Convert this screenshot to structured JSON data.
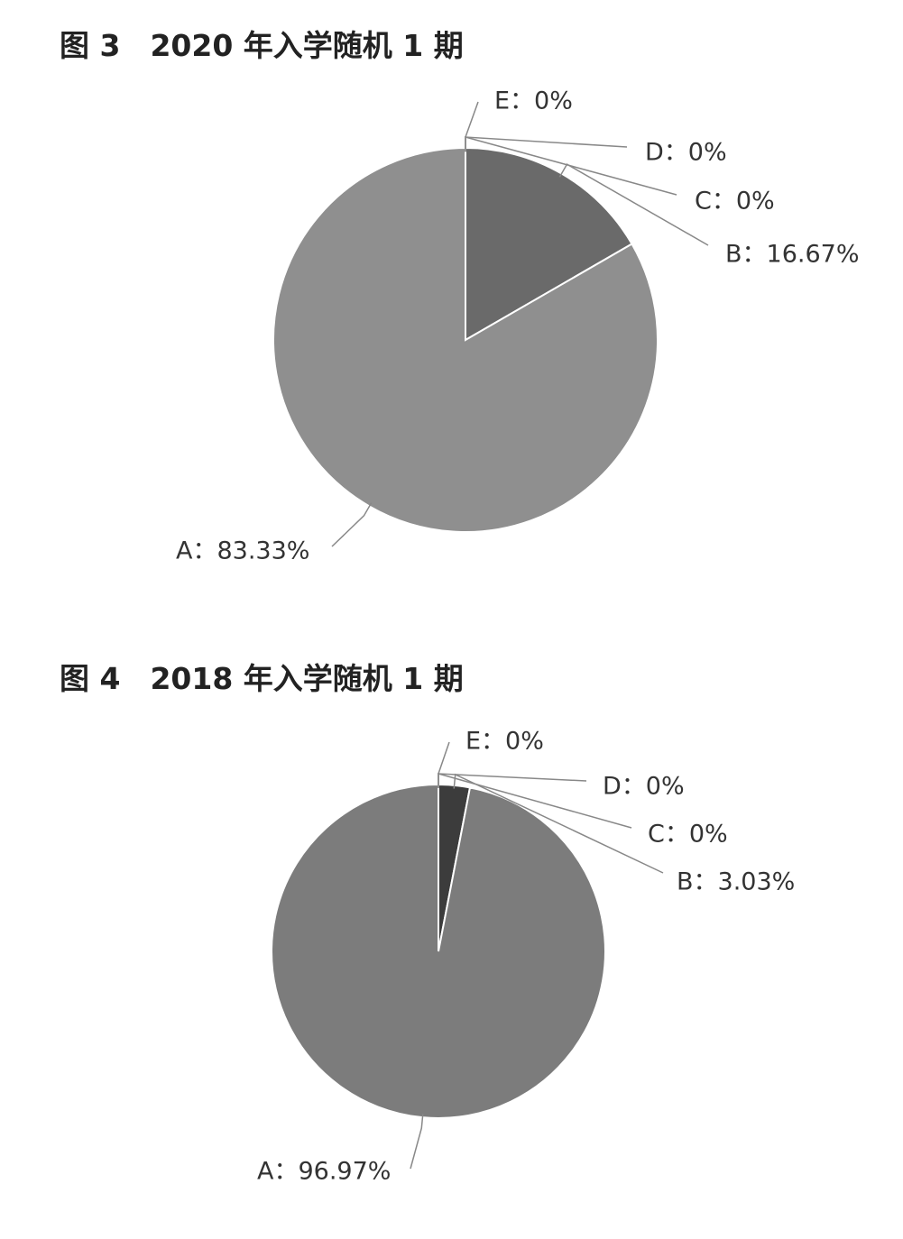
{
  "chart_data": [
    {
      "type": "pie",
      "title": "图 3　2020 年入学随机 1 期",
      "values": [
        83.33,
        16.67,
        0,
        0,
        0
      ],
      "value_labels": [
        "A：83.33%",
        "B：16.67%",
        "C：0%",
        "D：0%",
        "E：0%"
      ],
      "colors": [
        "#8f8f8f",
        "#6a6a6a",
        "#a0a0a0",
        "#a0a0a0",
        "#a0a0a0"
      ]
    },
    {
      "type": "pie",
      "title": "图 4　2018 年入学随机 1 期",
      "values": [
        96.97,
        3.03,
        0,
        0,
        0
      ],
      "value_labels": [
        "A：96.97%",
        "B：3.03%",
        "C：0%",
        "D：0%",
        "E：0%"
      ],
      "colors": [
        "#7c7c7c",
        "#3c3c3c",
        "#909090",
        "#909090",
        "#909090"
      ]
    }
  ]
}
